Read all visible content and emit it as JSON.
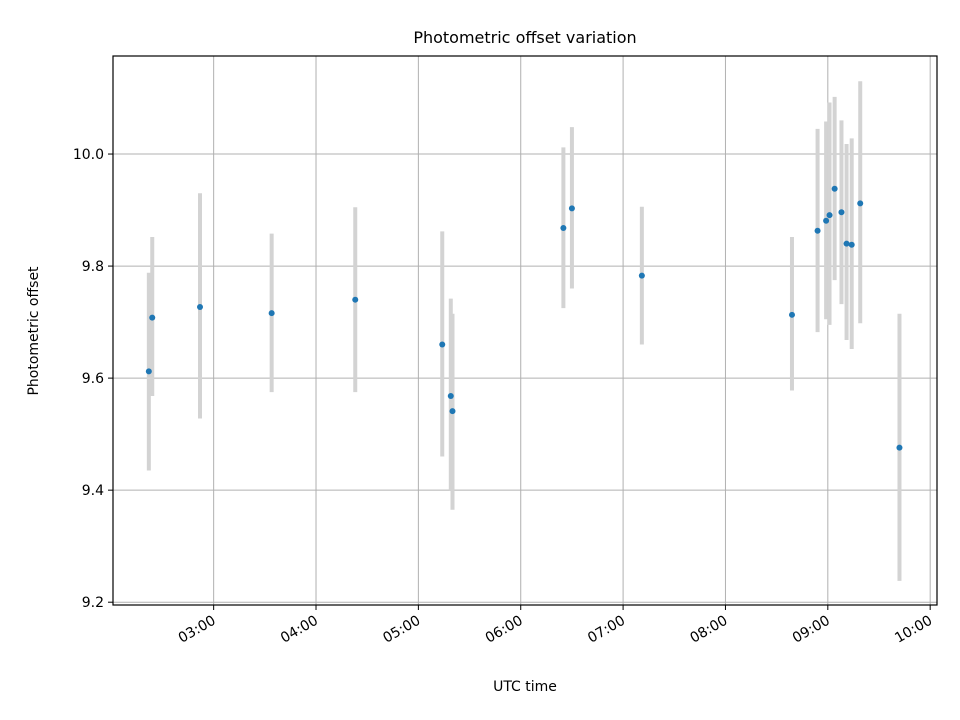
{
  "chart_data": {
    "type": "scatter",
    "title": "Photometric offset variation",
    "xlabel": "UTC time",
    "ylabel": "Photometric offset",
    "x_tick_labels": [
      "03:00",
      "04:00",
      "05:00",
      "06:00",
      "07:00",
      "08:00",
      "09:00",
      "10:00"
    ],
    "x_ticks": [
      "03:00",
      "04:00",
      "05:00",
      "06:00",
      "07:00",
      "08:00",
      "09:00",
      "10:00"
    ],
    "y_ticks": [
      9.2,
      9.4,
      9.6,
      9.8,
      10.0
    ],
    "y_tick_labels": [
      "9.2",
      "9.4",
      "9.6",
      "9.8",
      "10.0"
    ],
    "xlim": [
      "02:01",
      "10:04"
    ],
    "ylim": [
      9.195,
      10.175
    ],
    "grid": true,
    "marker_color": "#1f77b4",
    "errorbar_color": "#d3d3d3",
    "points": [
      {
        "x": "02:22",
        "y": 9.612,
        "ylow": 9.435,
        "yhigh": 9.788
      },
      {
        "x": "02:24",
        "y": 9.708,
        "ylow": 9.568,
        "yhigh": 9.852
      },
      {
        "x": "02:52",
        "y": 9.727,
        "ylow": 9.528,
        "yhigh": 9.93
      },
      {
        "x": "03:34",
        "y": 9.716,
        "ylow": 9.575,
        "yhigh": 9.858
      },
      {
        "x": "04:23",
        "y": 9.74,
        "ylow": 9.575,
        "yhigh": 9.905
      },
      {
        "x": "05:14",
        "y": 9.66,
        "ylow": 9.46,
        "yhigh": 9.862
      },
      {
        "x": "05:19",
        "y": 9.568,
        "ylow": 9.4,
        "yhigh": 9.742
      },
      {
        "x": "05:20",
        "y": 9.541,
        "ylow": 9.365,
        "yhigh": 9.715
      },
      {
        "x": "06:25",
        "y": 9.868,
        "ylow": 9.725,
        "yhigh": 10.012
      },
      {
        "x": "06:30",
        "y": 9.903,
        "ylow": 9.76,
        "yhigh": 10.048
      },
      {
        "x": "07:11",
        "y": 9.783,
        "ylow": 9.66,
        "yhigh": 9.906
      },
      {
        "x": "08:39",
        "y": 9.713,
        "ylow": 9.578,
        "yhigh": 9.852
      },
      {
        "x": "08:54",
        "y": 9.863,
        "ylow": 9.682,
        "yhigh": 10.045
      },
      {
        "x": "08:59",
        "y": 9.881,
        "ylow": 9.705,
        "yhigh": 10.058
      },
      {
        "x": "09:01",
        "y": 9.891,
        "ylow": 9.695,
        "yhigh": 10.092
      },
      {
        "x": "09:04",
        "y": 9.938,
        "ylow": 9.775,
        "yhigh": 10.102
      },
      {
        "x": "09:08",
        "y": 9.896,
        "ylow": 9.732,
        "yhigh": 10.06
      },
      {
        "x": "09:11",
        "y": 9.84,
        "ylow": 9.668,
        "yhigh": 10.018
      },
      {
        "x": "09:14",
        "y": 9.838,
        "ylow": 9.652,
        "yhigh": 10.028
      },
      {
        "x": "09:19",
        "y": 9.912,
        "ylow": 9.698,
        "yhigh": 10.13
      },
      {
        "x": "09:42",
        "y": 9.476,
        "ylow": 9.238,
        "yhigh": 9.715
      }
    ]
  }
}
